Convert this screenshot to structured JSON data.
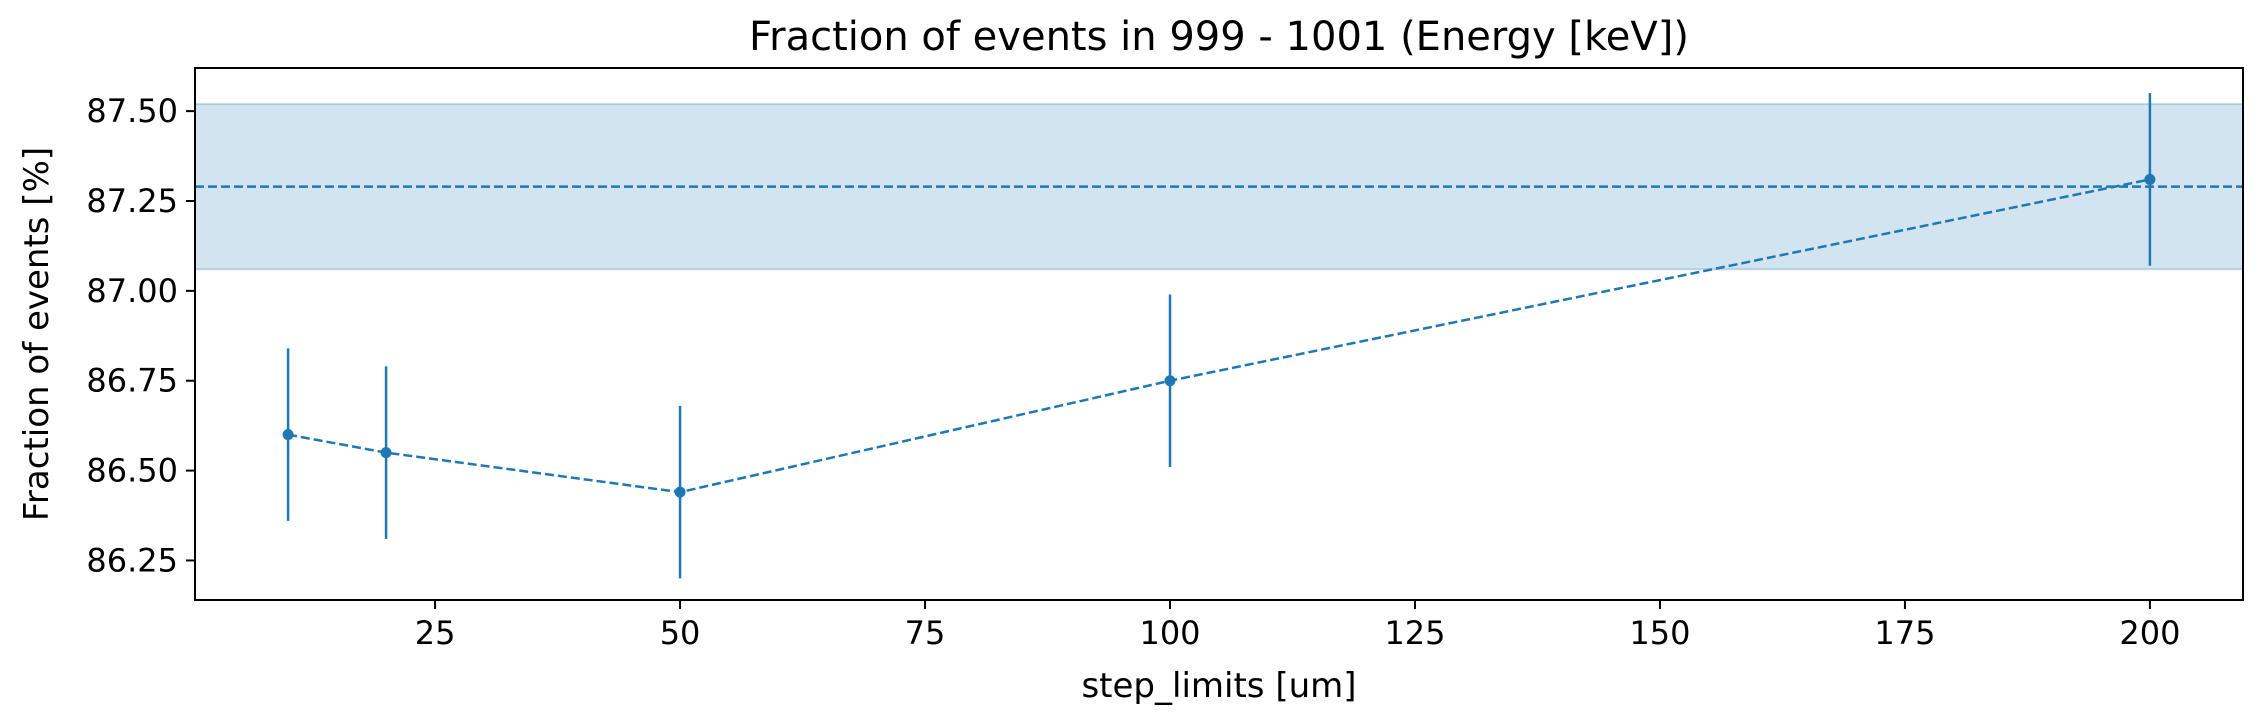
{
  "chart_data": {
    "type": "line",
    "title": "Fraction of events in 999 - 1001 (Energy [keV])",
    "xlabel": "step_limits [um]",
    "ylabel": "Fraction of events [%]",
    "xlim": [
      0.5,
      209.5
    ],
    "ylim": [
      86.14,
      87.62
    ],
    "xticks": [
      25,
      50,
      75,
      100,
      125,
      150,
      175,
      200
    ],
    "xtick_labels": [
      "25",
      "50",
      "75",
      "100",
      "125",
      "150",
      "175",
      "200"
    ],
    "yticks": [
      86.25,
      86.5,
      86.75,
      87.0,
      87.25,
      87.5
    ],
    "ytick_labels": [
      "86.25",
      "86.50",
      "86.75",
      "87.00",
      "87.25",
      "87.50"
    ],
    "grid": false,
    "series": [
      {
        "x": [
          10,
          20,
          50,
          100,
          200
        ],
        "y": [
          86.6,
          86.55,
          86.44,
          86.75,
          87.31
        ],
        "yerr": [
          0.24,
          0.24,
          0.24,
          0.24,
          0.24
        ],
        "color": "#1f77b4",
        "linestyle": "dashed",
        "marker": "circle"
      }
    ],
    "reference": {
      "value": 87.29,
      "band": [
        87.06,
        87.52
      ],
      "color": "#1f77b4",
      "linestyle": "dashed"
    }
  }
}
